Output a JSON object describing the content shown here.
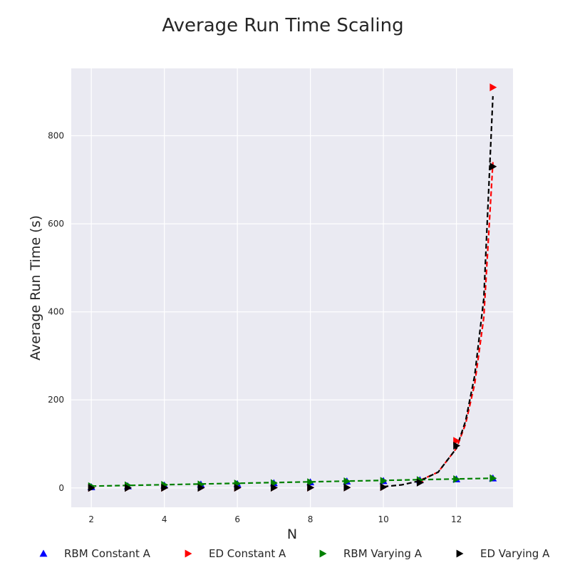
{
  "chart_data": {
    "type": "scatter",
    "title": "Average Run Time Scaling",
    "xlabel": "N",
    "ylabel": "Average Run Time (s)",
    "xlim": [
      1.45,
      13.55
    ],
    "ylim": [
      -44,
      953
    ],
    "xticks": [
      2,
      4,
      6,
      8,
      10,
      12
    ],
    "yticks": [
      0,
      200,
      400,
      600,
      800
    ],
    "grid": true,
    "legend_position": "bottom",
    "x": [
      2,
      3,
      4,
      5,
      6,
      7,
      8,
      9,
      10,
      11,
      12,
      13
    ],
    "series": [
      {
        "name": "RBM Constant A",
        "marker": "triangle-up",
        "color": "#0000ff",
        "values": [
          2,
          4,
          6,
          8,
          9,
          11,
          13,
          15,
          16,
          18,
          20,
          22
        ]
      },
      {
        "name": "ED Constant A",
        "marker": "triangle-right",
        "color": "#ff0000",
        "values": [
          0.1,
          0.2,
          0.3,
          0.4,
          0.5,
          0.6,
          0.8,
          1,
          2,
          14,
          107,
          910
        ]
      },
      {
        "name": "RBM Varying A",
        "marker": "triangle-right",
        "color": "#008000",
        "values": [
          4,
          6,
          7,
          8,
          10,
          11,
          13,
          15,
          16,
          18,
          20,
          22
        ]
      },
      {
        "name": "ED Varying A",
        "marker": "triangle-right",
        "color": "#000000",
        "values": [
          0.1,
          0.2,
          0.3,
          0.4,
          0.5,
          0.6,
          0.8,
          1,
          2,
          12,
          96,
          730
        ]
      }
    ],
    "fit_curves": [
      {
        "color": "#ff0000",
        "x": [
          11,
          11.5,
          12,
          12.25,
          12.5,
          12.75,
          13
        ],
        "values": [
          17,
          36,
          90,
          145,
          236,
          387,
          740
        ]
      },
      {
        "color": "#008000",
        "x": [
          2,
          13
        ],
        "values": [
          4,
          22
        ]
      },
      {
        "color": "#000000",
        "x": [
          10,
          10.5,
          11,
          11.5,
          12,
          12.25,
          12.5,
          12.75,
          13
        ],
        "values": [
          3,
          7,
          16,
          36,
          90,
          152,
          255,
          430,
          890
        ]
      }
    ]
  }
}
